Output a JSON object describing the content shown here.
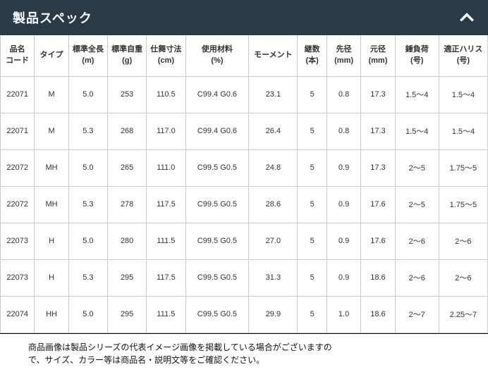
{
  "header": {
    "title": "製品スペック"
  },
  "table": {
    "columns": [
      {
        "line1": "品名",
        "line2": "コード"
      },
      {
        "line1": "タイプ",
        "line2": ""
      },
      {
        "line1": "標準全長",
        "line2": "(m)"
      },
      {
        "line1": "標準自重",
        "line2": "(g)"
      },
      {
        "line1": "仕舞寸法",
        "line2": "(cm)"
      },
      {
        "line1": "使用材料",
        "line2": "(%)"
      },
      {
        "line1": "モーメント",
        "line2": ""
      },
      {
        "line1": "継数",
        "line2": "(本)"
      },
      {
        "line1": "先径",
        "line2": "(mm)"
      },
      {
        "line1": "元径",
        "line2": "(mm)"
      },
      {
        "line1": "錘負荷",
        "line2": "(号)"
      },
      {
        "line1": "適正ハリス",
        "line2": "(号)"
      }
    ],
    "rows": [
      [
        "22071",
        "M",
        "5.0",
        "253",
        "110.5",
        "C99.4 G0.6",
        "23.1",
        "5",
        "0.8",
        "17.3",
        "1.5～4",
        "1.5～4"
      ],
      [
        "22071",
        "M",
        "5.3",
        "268",
        "117.0",
        "C99.4 G0.6",
        "26.4",
        "5",
        "0.8",
        "17.3",
        "1.5～4",
        "1.5～4"
      ],
      [
        "22072",
        "MH",
        "5.0",
        "265",
        "111.0",
        "C99.5 G0.5",
        "24.8",
        "5",
        "0.9",
        "17.3",
        "2～5",
        "1.75～5"
      ],
      [
        "22072",
        "MH",
        "5.3",
        "278",
        "117.5",
        "C99.5 G0.5",
        "28.6",
        "5",
        "0.9",
        "17.6",
        "2～5",
        "1.75～5"
      ],
      [
        "22073",
        "H",
        "5.0",
        "280",
        "111.5",
        "C99.5 G0.5",
        "27.0",
        "5",
        "0.9",
        "17.6",
        "2～6",
        "2～6"
      ],
      [
        "22073",
        "H",
        "5.3",
        "295",
        "117.5",
        "C99.5 G0.5",
        "31.3",
        "5",
        "0.9",
        "18.6",
        "2～6",
        "2～6"
      ],
      [
        "22074",
        "HH",
        "5.0",
        "295",
        "111.5",
        "C99.5 G0.5",
        "29.9",
        "5",
        "1.0",
        "18.6",
        "2～7",
        "2.25～7"
      ]
    ]
  },
  "footer": {
    "line1": "商品画像は製品シリーズの代表イメージ画像を掲載している場合がございますの",
    "line2": "で、サイズ、カラー等は商品名・説明文等をご確認ください。"
  },
  "style": {
    "header_bg": "#2b3a47",
    "header_fg": "#ffffff",
    "border_color": "#cccccc",
    "text_color": "#333333"
  }
}
